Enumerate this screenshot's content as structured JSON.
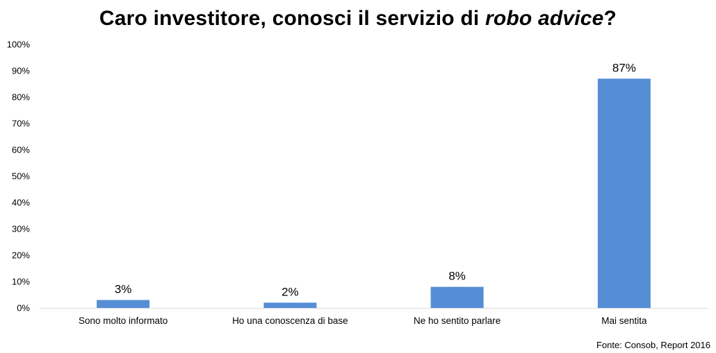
{
  "title": {
    "prefix": "Caro investitore, conosci il servizio di ",
    "emphasis": "robo advice",
    "suffix": "?"
  },
  "source": "Fonte: Consob, Report 2016",
  "colors": {
    "bar": "#558ED5",
    "axis": "#D9D9D9",
    "text": "#000000"
  },
  "chart_data": {
    "type": "bar",
    "title": "Caro investitore, conosci il servizio di robo advice?",
    "categories": [
      "Sono molto informato",
      "Ho una conoscenza di base",
      "Ne ho sentito parlare",
      "Mai sentita"
    ],
    "values": [
      3,
      2,
      8,
      87
    ],
    "data_labels": [
      "3%",
      "2%",
      "8%",
      "87%"
    ],
    "ylim": [
      0,
      100
    ],
    "yticks": [
      0,
      10,
      20,
      30,
      40,
      50,
      60,
      70,
      80,
      90,
      100
    ],
    "ytick_labels": [
      "0%",
      "10%",
      "20%",
      "30%",
      "40%",
      "50%",
      "60%",
      "70%",
      "80%",
      "90%",
      "100%"
    ],
    "grid": false,
    "legend": "none",
    "xlabel": "",
    "ylabel": ""
  }
}
